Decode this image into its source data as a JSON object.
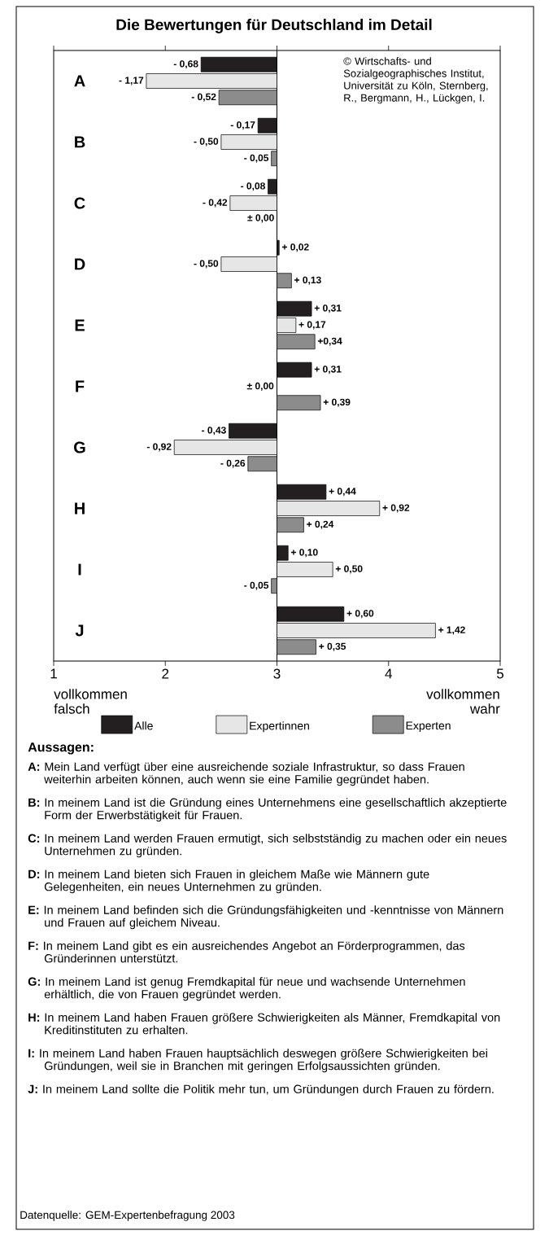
{
  "chart_data": {
    "type": "bar",
    "orientation": "horizontal",
    "title": "Die Bewertungen für Deutschland im Detail",
    "categories": [
      "A",
      "B",
      "C",
      "D",
      "E",
      "F",
      "G",
      "H",
      "I",
      "J"
    ],
    "xlim": [
      1,
      5
    ],
    "xticks": [
      1,
      2,
      3,
      4,
      5
    ],
    "legend": "bottom",
    "series": [
      {
        "name": "Alle",
        "color": "#231f20",
        "base": [
          3,
          3,
          3,
          3,
          3,
          3,
          3,
          3,
          3,
          3
        ],
        "values": [
          -0.68,
          -0.17,
          -0.08,
          0.02,
          0.31,
          0.31,
          -0.43,
          0.44,
          0.1,
          0.6
        ],
        "value_labels": [
          "- 0,68",
          "- 0,17",
          "- 0,08",
          "+ 0,02",
          "+ 0,31",
          "+ 0,31",
          "- 0,43",
          "+ 0,44",
          "+ 0,10",
          "+ 0,60"
        ]
      },
      {
        "name": "Expertinnen",
        "color": "#e6e6e6",
        "base": [
          3,
          3,
          3,
          3,
          3,
          null,
          3,
          3,
          3,
          3
        ],
        "values": [
          -1.17,
          -0.5,
          -0.42,
          -0.5,
          0.17,
          null,
          -0.92,
          0.92,
          0.5,
          1.42
        ],
        "value_labels": [
          "- 1,17",
          "- 0,50",
          "- 0,42",
          "- 0,50",
          "+ 0,17",
          null,
          "- 0,92",
          "+ 0,92",
          "+ 0,50",
          "+ 1,42"
        ]
      },
      {
        "name": "Experten",
        "color": "#8c8c8c",
        "base": [
          3,
          3,
          null,
          3,
          3,
          3,
          3,
          3,
          3,
          3
        ],
        "values": [
          -0.52,
          -0.05,
          null,
          0.13,
          0.34,
          0.39,
          -0.26,
          0.24,
          -0.05,
          0.35
        ],
        "value_labels": [
          "- 0,52",
          "- 0,05",
          null,
          "+ 0,13",
          "+0,34",
          "+ 0,39",
          "- 0,26",
          "+ 0,24",
          "- 0,05",
          "+ 0,35"
        ]
      }
    ],
    "annotations": [
      "© Wirtschafts- und Sozialgeographisches Institut, Universität zu Köln, Sternberg, R., Bergmann, H., Lückgen, I.",
      "vollkommen falsch",
      "vollkommen wahr",
      "Aussagen:",
      "**A:** Mein Land verfügt über eine ausreichende soziale Infrastruktur, so dass Frauen weiterhin arbeiten können, auch wenn sie eine Familie gegründet haben.",
      "**B:** In meinem Land ist die Gründung eines Unternehmens eine gesellschaftlich akzeptierte Form der Erwerbstätigkeit für Frauen.",
      "**C:** In meinem Land werden Frauen ermutigt, sich selbstständig zu machen oder ein neues Unternehmen zu gründen.",
      "**D:** In meinem Land bieten sich Frauen in gleichem Maße wie Männern gute Gelegenheiten, ein neues Unternehmen zu gründen.",
      "**E:** In meinem Land befinden sich die Gründungsfähigkeiten und -kenntnisse von Männern und Frauen auf gleichem Niveau.",
      "**F:** In meinem Land gibt es ein ausreichendes Angebot an Förderprogrammen, das Gründerinnen unterstützt.",
      "**G:** In meinem Land ist genug Fremdkapital für neue und wachsende Unternehmen erhältlich, die von Frauen gegründet werden.",
      "**H:** In meinem Land haben Frauen größere Schwierigkeiten als Männer, Fremdkapital von Kreditinstituten zu erhalten.",
      "**I:** In meinem Land haben Frauen hauptsächlich deswegen größere Schwierigkeiten bei Gründungen, weil sie in Branchen mit geringen Erfolgsaussichten gründen.",
      "**J:** In meinem Land sollte die Politik mehr tun, um Gründungen durch Frauen zu fördern.",
      "± 0,00",
      "Datenquelle: GEM-Expertenbefragung 2003",
      {
        "text": "± 0,00",
        "x": 3,
        "y": "C"
      }
    ]
  }
}
